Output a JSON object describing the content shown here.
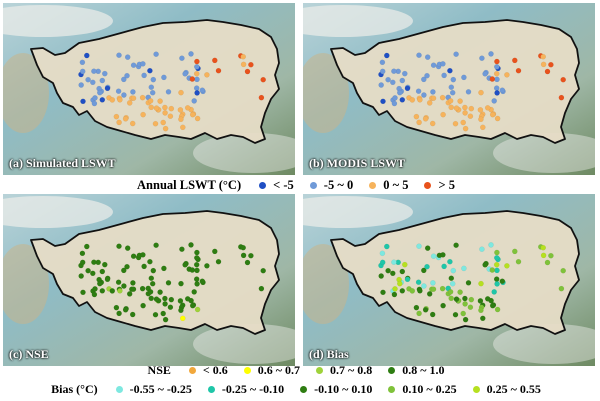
{
  "panels": [
    {
      "id": "a",
      "label": "(a) Simulated LSWT",
      "scheme": "lswt"
    },
    {
      "id": "b",
      "label": "(b) MODIS LSWT",
      "scheme": "lswt"
    },
    {
      "id": "c",
      "label": "(c) NSE",
      "scheme": "nse"
    },
    {
      "id": "d",
      "label": "(d) Bias",
      "scheme": "bias"
    }
  ],
  "legends": {
    "lswt": {
      "title": "Annual LSWT (°C)",
      "items": [
        {
          "label": "< -5",
          "color": "#1f4fc4"
        },
        {
          "label": "-5 ~ 0",
          "color": "#6f9ad8"
        },
        {
          "label": "0 ~ 5",
          "color": "#f6b35c"
        },
        {
          "label": "> 5",
          "color": "#e8521c"
        }
      ]
    },
    "nse": {
      "title": "NSE",
      "items": [
        {
          "label": "< 0.6",
          "color": "#f2a83c"
        },
        {
          "label": "0.6 ~ 0.7",
          "color": "#ffff00"
        },
        {
          "label": "0.7 ~ 0.8",
          "color": "#9fd23a"
        },
        {
          "label": "0.8 ~ 1.0",
          "color": "#2e7d12"
        }
      ]
    },
    "bias": {
      "title": "Bias (°C)",
      "items": [
        {
          "label": "-0.55 ~ -0.25",
          "color": "#7ee8e0"
        },
        {
          "label": "-0.25 ~ -0.10",
          "color": "#1fc6a8"
        },
        {
          "label": "-0.10 ~ 0.10",
          "color": "#2e7d12"
        },
        {
          "label": "0.10 ~ 0.25",
          "color": "#7fc23a"
        },
        {
          "label": "0.25 ~ 0.55",
          "color": "#b6e020"
        }
      ]
    }
  },
  "colors": {
    "ocean": "#8fbcc6",
    "plateau": "#e6dcc6",
    "boundary": "#111111",
    "terrain_dark": "#6e8a62",
    "terrain_snow": "#eeeeea"
  }
}
